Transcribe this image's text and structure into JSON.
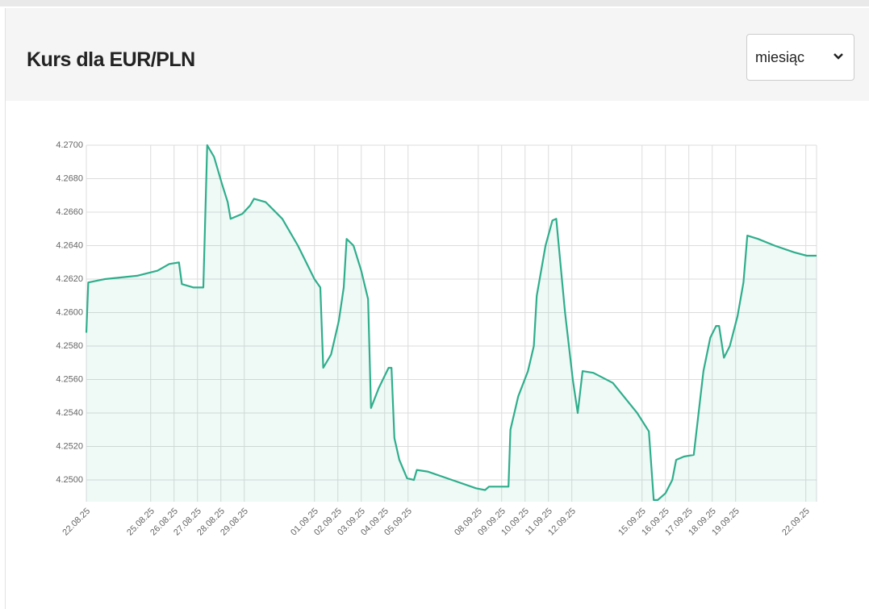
{
  "controls": {
    "period": "miesiąc"
  },
  "chart_data": {
    "type": "line",
    "title": "Kurs dla EUR/PLN",
    "color": "#2fae8c",
    "grid": true,
    "xlim": [
      "2025-08-22 06:00",
      "2025-09-22 11:00"
    ],
    "ylim": [
      4.2487,
      4.27
    ],
    "yticks": [
      {
        "value": 4.25,
        "label": "4.2500"
      },
      {
        "value": 4.252,
        "label": "4.2520"
      },
      {
        "value": 4.254,
        "label": "4.2540"
      },
      {
        "value": 4.256,
        "label": "4.2560"
      },
      {
        "value": 4.258,
        "label": "4.2580"
      },
      {
        "value": 4.26,
        "label": "4.2600"
      },
      {
        "value": 4.262,
        "label": "4.2620"
      },
      {
        "value": 4.264,
        "label": "4.2640"
      },
      {
        "value": 4.266,
        "label": "4.2660"
      },
      {
        "value": 4.268,
        "label": "4.2680"
      },
      {
        "value": 4.27,
        "label": "4.2700"
      }
    ],
    "xticks": [
      {
        "value": "2025-08-22 06:00",
        "label": "22.08.25"
      },
      {
        "value": "2025-08-25 00:00",
        "label": "25.08.25"
      },
      {
        "value": "2025-08-26 00:00",
        "label": "26.08.25"
      },
      {
        "value": "2025-08-27 00:00",
        "label": "27.08.25"
      },
      {
        "value": "2025-08-28 00:00",
        "label": "28.08.25"
      },
      {
        "value": "2025-08-29 00:00",
        "label": "29.08.25"
      },
      {
        "value": "2025-09-01 00:00",
        "label": "01.09.25"
      },
      {
        "value": "2025-09-02 00:00",
        "label": "02.09.25"
      },
      {
        "value": "2025-09-03 00:00",
        "label": "03.09.25"
      },
      {
        "value": "2025-09-04 00:00",
        "label": "04.09.25"
      },
      {
        "value": "2025-09-05 00:00",
        "label": "05.09.25"
      },
      {
        "value": "2025-09-08 00:00",
        "label": "08.09.25"
      },
      {
        "value": "2025-09-09 00:00",
        "label": "09.09.25"
      },
      {
        "value": "2025-09-10 00:00",
        "label": "10.09.25"
      },
      {
        "value": "2025-09-11 00:00",
        "label": "11.09.25"
      },
      {
        "value": "2025-09-12 00:00",
        "label": "12.09.25"
      },
      {
        "value": "2025-09-15 00:00",
        "label": "15.09.25"
      },
      {
        "value": "2025-09-16 00:00",
        "label": "16.09.25"
      },
      {
        "value": "2025-09-17 00:00",
        "label": "17.09.25"
      },
      {
        "value": "2025-09-18 00:00",
        "label": "18.09.25"
      },
      {
        "value": "2025-09-19 00:00",
        "label": "19.09.25"
      },
      {
        "value": "2025-09-22 00:00",
        "label": "22.09.25"
      }
    ],
    "x": [
      "2025-08-22 06:00",
      "2025-08-22 08:00",
      "2025-08-23 01:00",
      "2025-08-24 10:00",
      "2025-08-25 07:00",
      "2025-08-25 19:00",
      "2025-08-26 05:00",
      "2025-08-26 08:00",
      "2025-08-26 20:00",
      "2025-08-27 06:00",
      "2025-08-27 10:00",
      "2025-08-27 17:00",
      "2025-08-28 01:00",
      "2025-08-28 07:00",
      "2025-08-28 10:00",
      "2025-08-28 22:00",
      "2025-08-29 06:00",
      "2025-08-29 10:00",
      "2025-08-29 22:00",
      "2025-08-30 15:00",
      "2025-08-31 07:00",
      "2025-09-01 00:00",
      "2025-09-01 06:00",
      "2025-09-01 09:00",
      "2025-09-01 17:00",
      "2025-09-02 01:00",
      "2025-09-02 06:00",
      "2025-09-02 09:00",
      "2025-09-02 16:00",
      "2025-09-03 00:00",
      "2025-09-03 07:00",
      "2025-09-03 10:00",
      "2025-09-03 18:00",
      "2025-09-04 04:00",
      "2025-09-04 07:00",
      "2025-09-04 10:00",
      "2025-09-04 15:00",
      "2025-09-04 23:00",
      "2025-09-05 06:00",
      "2025-09-05 09:00",
      "2025-09-05 20:00",
      "2025-09-06 21:00",
      "2025-09-07 22:00",
      "2025-09-08 07:00",
      "2025-09-08 11:00",
      "2025-09-09 07:00",
      "2025-09-09 09:00",
      "2025-09-09 17:00",
      "2025-09-10 03:00",
      "2025-09-10 09:00",
      "2025-09-10 12:00",
      "2025-09-10 21:00",
      "2025-09-11 04:00",
      "2025-09-11 08:00",
      "2025-09-11 17:00",
      "2025-09-12 01:00",
      "2025-09-12 06:00",
      "2025-09-12 11:00",
      "2025-09-12 22:00",
      "2025-09-13 18:00",
      "2025-09-14 19:00",
      "2025-09-15 07:00",
      "2025-09-15 12:00",
      "2025-09-15 16:00",
      "2025-09-16 00:00",
      "2025-09-16 07:00",
      "2025-09-16 11:00",
      "2025-09-16 19:00",
      "2025-09-17 05:00",
      "2025-09-17 10:00",
      "2025-09-17 15:00",
      "2025-09-17 22:00",
      "2025-09-18 04:00",
      "2025-09-18 07:00",
      "2025-09-18 12:00",
      "2025-09-18 18:00",
      "2025-09-19 02:00",
      "2025-09-19 08:00",
      "2025-09-19 12:00",
      "2025-09-19 23:00",
      "2025-09-20 16:00",
      "2025-09-21 12:00",
      "2025-09-22 01:00",
      "2025-09-22 11:00"
    ],
    "series": [
      {
        "name": "EUR/PLN",
        "color": "#2fae8c",
        "values": [
          4.2588,
          4.2618,
          4.262,
          4.2622,
          4.2625,
          4.2629,
          4.263,
          4.2617,
          4.2615,
          4.2615,
          4.27,
          4.2693,
          4.2677,
          4.2666,
          4.2656,
          4.2659,
          4.2664,
          4.2668,
          4.2666,
          4.2656,
          4.264,
          4.262,
          4.2615,
          4.2567,
          4.2575,
          4.2595,
          4.2615,
          4.2644,
          4.264,
          4.2625,
          4.2608,
          4.2543,
          4.2555,
          4.2567,
          4.2567,
          4.2525,
          4.2512,
          4.2501,
          4.25,
          4.2506,
          4.2505,
          4.25,
          4.2495,
          4.2494,
          4.2496,
          4.2496,
          4.253,
          4.255,
          4.2565,
          4.258,
          4.261,
          4.264,
          4.2655,
          4.2656,
          4.26,
          4.256,
          4.254,
          4.2565,
          4.2564,
          4.2558,
          4.254,
          4.2529,
          4.2488,
          4.2488,
          4.2492,
          4.25,
          4.2512,
          4.2514,
          4.2515,
          4.254,
          4.2565,
          4.2585,
          4.2592,
          4.2592,
          4.2573,
          4.258,
          4.2598,
          4.2618,
          4.2646,
          4.2644,
          4.264,
          4.2636,
          4.2634,
          4.2634
        ]
      }
    ]
  }
}
